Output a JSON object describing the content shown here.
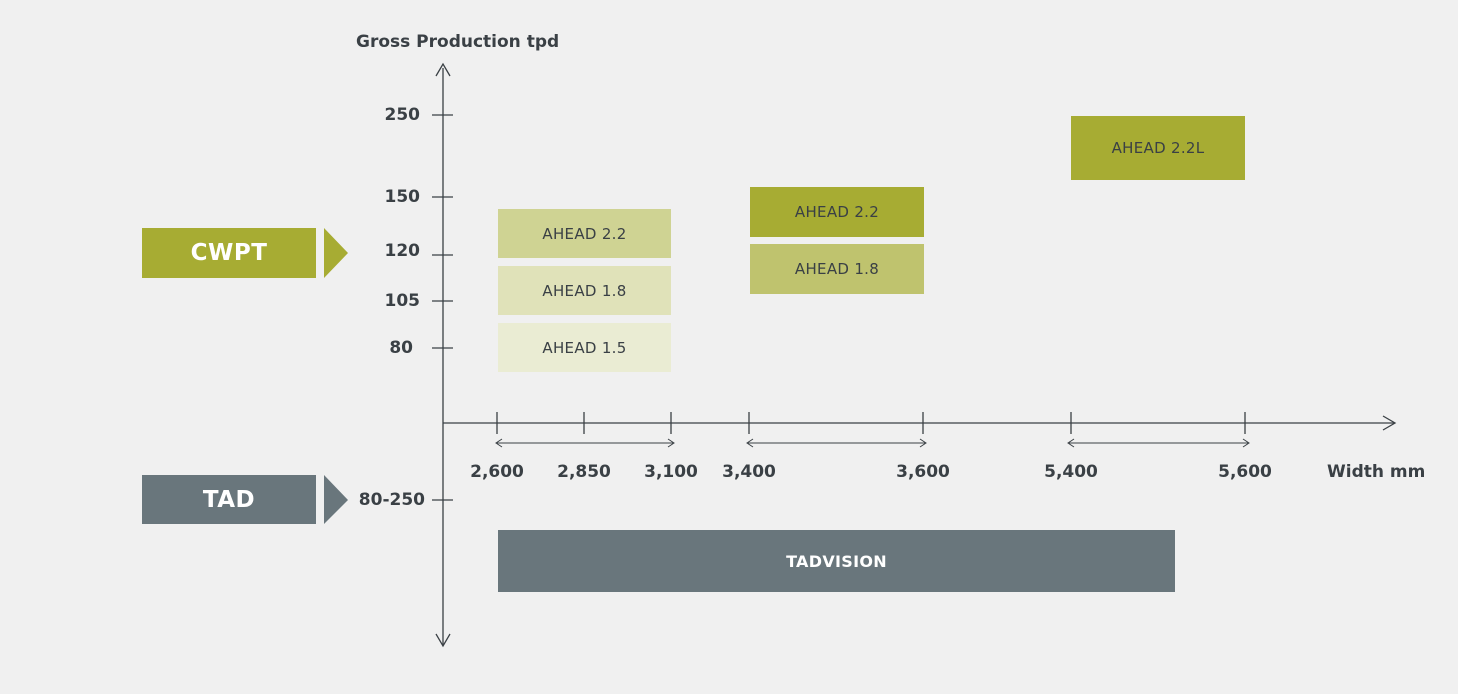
{
  "axes": {
    "y_title": "Gross Production tpd",
    "x_title": "Width mm",
    "y_ticks": [
      "250",
      "150",
      "120",
      "105",
      "80"
    ],
    "x_ticks": [
      "2,600",
      "2,850",
      "3,100",
      "3,400",
      "3,600",
      "5,400",
      "5,600"
    ],
    "tad_tick": "80-250"
  },
  "categories": {
    "cwpt": {
      "label": "CWPT",
      "color": "#a7ac33"
    },
    "tad": {
      "label": "TAD",
      "color": "#69767c"
    }
  },
  "boxes": [
    {
      "label": "AHEAD 2.2",
      "color": "#cfd393"
    },
    {
      "label": "AHEAD 1.8",
      "color": "#e0e2b9"
    },
    {
      "label": "AHEAD 1.5",
      "color": "#eaecd3"
    },
    {
      "label": "AHEAD 2.2",
      "color": "#a7ac33"
    },
    {
      "label": "AHEAD 1.8",
      "color": "#bfc36e"
    },
    {
      "label": "AHEAD 2.2L",
      "color": "#a7ac33"
    }
  ],
  "tadvision": {
    "label": "TADVISION",
    "color": "#69767c"
  }
}
